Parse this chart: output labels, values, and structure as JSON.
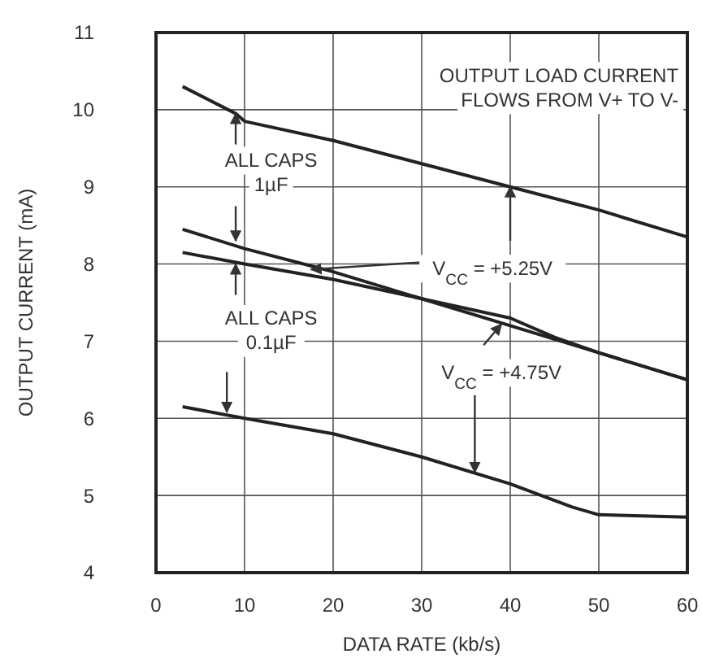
{
  "chart_data": {
    "type": "line",
    "xlabel": "DATA RATE (kb/s)",
    "ylabel": "OUTPUT CURRENT (mA)",
    "xlim": [
      0,
      60
    ],
    "xticks": [
      0,
      10,
      20,
      30,
      40,
      50,
      60
    ],
    "ylim": [
      4,
      11
    ],
    "yticks": [
      4,
      5,
      6,
      7,
      8,
      9,
      10,
      11
    ],
    "grid": true,
    "marker": "none",
    "line_style": "solid",
    "series": [
      {
        "color": "#222222",
        "x": [
          3,
          9,
          10,
          20,
          30,
          40,
          50,
          60
        ],
        "values": [
          10.3,
          9.95,
          9.85,
          9.6,
          9.3,
          9.0,
          8.7,
          8.35
        ]
      },
      {
        "color": "#222222",
        "x": [
          3,
          10,
          20,
          30,
          40,
          50,
          60
        ],
        "values": [
          8.45,
          8.2,
          7.9,
          7.55,
          7.2,
          6.85,
          6.5
        ]
      },
      {
        "color": "#222222",
        "x": [
          3,
          10,
          20,
          30,
          40,
          45,
          50,
          60
        ],
        "values": [
          8.15,
          8.0,
          7.8,
          7.55,
          7.3,
          7.05,
          6.85,
          6.5
        ]
      },
      {
        "color": "#222222",
        "x": [
          3,
          10,
          20,
          30,
          40,
          47,
          50,
          60
        ],
        "values": [
          6.15,
          6.0,
          5.8,
          5.5,
          5.15,
          4.85,
          4.75,
          4.72
        ]
      }
    ],
    "annotations": [
      "OUTPUT LOAD CURRENT\nFLOWS FROM V+ TO V-",
      "ALL CAPS\n1µF",
      "ALL CAPS\n0.1µF",
      {
        "text": "V$_{CC}$ = +5.25V",
        "x": 40,
        "y": 9.0
      },
      {
        "text": "V$_{CC}$ = +4.75V",
        "x": 36,
        "y": 5.3
      }
    ]
  }
}
